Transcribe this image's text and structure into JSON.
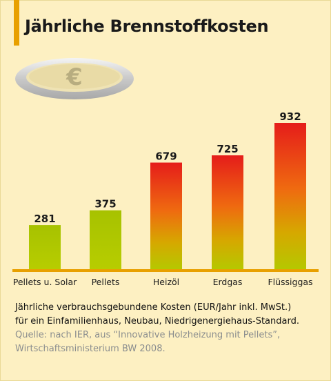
{
  "title": "Jährliche Brennstoffkosten",
  "coin_icon": "euro-coin-icon",
  "colors": {
    "bar_green": "#aac400",
    "bar_top_red": "#e8201a",
    "bar_mid_orange": "#ef7a10",
    "bar_low_yellow": "#c8c400",
    "baseline": "#e8a000",
    "title_accent": "#e8a000",
    "source_text": "#8a8d8e"
  },
  "chart_data": {
    "type": "bar",
    "title": "Jährliche Brennstoffkosten",
    "categories": [
      "Pellets u. Solar",
      "Pellets",
      "Heizöl",
      "Erdgas",
      "Flüssiggas"
    ],
    "values": [
      281,
      375,
      679,
      725,
      932
    ],
    "ylabel": "",
    "xlabel": "",
    "ylim": [
      0,
      932
    ],
    "grid": false,
    "legend": "none",
    "data_labels": [
      "281",
      "375",
      "679",
      "725",
      "932"
    ]
  },
  "caption": {
    "line1": "Jährliche verbrauchsgebundene Kosten (EUR/Jahr inkl. MwSt.)",
    "line2": "für ein Einfamilienhaus, Neubau, Niedrigenergiehaus-Standard.",
    "source1": "Quelle: nach IER, aus “Innovative Holzheizung mit Pellets”,",
    "source2": "Wirtschaftsministerium BW  2008."
  }
}
